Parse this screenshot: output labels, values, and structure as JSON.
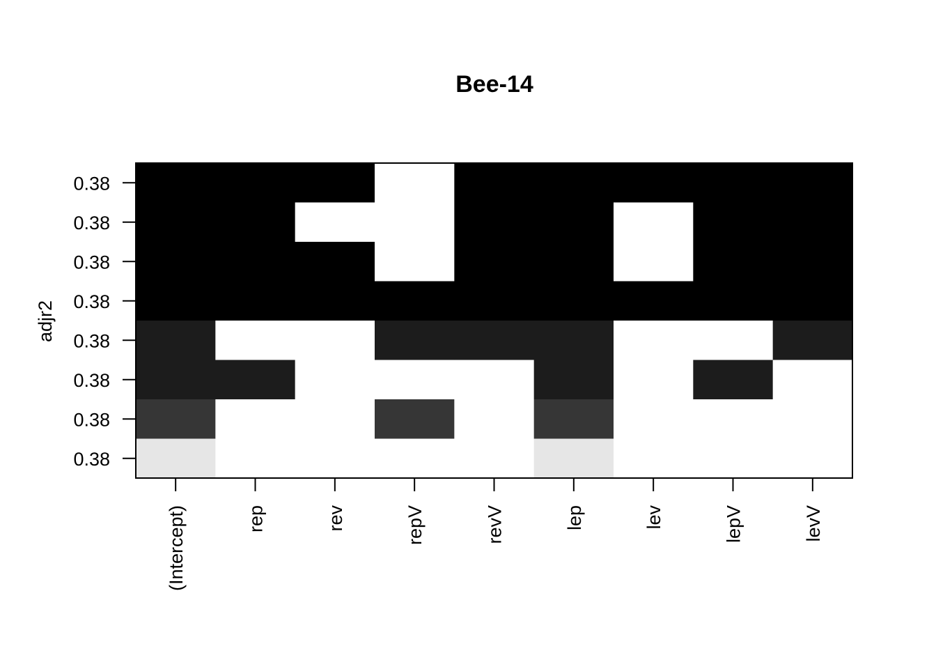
{
  "chart_data": {
    "type": "heatmap",
    "title": "Bee-14",
    "xlabel": "",
    "ylabel": "adjr2",
    "x_categories": [
      "(Intercept)",
      "rep",
      "rev",
      "repV",
      "revV",
      "lep",
      "lev",
      "lepV",
      "levV"
    ],
    "y_tick_labels": [
      "0.38",
      "0.38",
      "0.38",
      "0.38",
      "0.38",
      "0.38",
      "0.38",
      "0.38"
    ],
    "row_order": "top-to-bottom",
    "color_scale": "grayscale (black = highest adjr2, white = variable not included)",
    "cell_colors": [
      [
        "#000000",
        "#000000",
        "#000000",
        "#ffffff",
        "#000000",
        "#000000",
        "#000000",
        "#000000",
        "#000000"
      ],
      [
        "#000000",
        "#000000",
        "#ffffff",
        "#ffffff",
        "#000000",
        "#000000",
        "#ffffff",
        "#000000",
        "#000000"
      ],
      [
        "#000000",
        "#000000",
        "#000000",
        "#ffffff",
        "#000000",
        "#000000",
        "#ffffff",
        "#000000",
        "#000000"
      ],
      [
        "#000000",
        "#000000",
        "#000000",
        "#000000",
        "#000000",
        "#000000",
        "#000000",
        "#000000",
        "#000000"
      ],
      [
        "#1c1c1c",
        "#ffffff",
        "#ffffff",
        "#1c1c1c",
        "#1c1c1c",
        "#1c1c1c",
        "#ffffff",
        "#ffffff",
        "#1c1c1c"
      ],
      [
        "#1c1c1c",
        "#1c1c1c",
        "#ffffff",
        "#ffffff",
        "#ffffff",
        "#1c1c1c",
        "#ffffff",
        "#1c1c1c",
        "#ffffff"
      ],
      [
        "#363636",
        "#ffffff",
        "#ffffff",
        "#363636",
        "#ffffff",
        "#363636",
        "#ffffff",
        "#ffffff",
        "#ffffff"
      ],
      [
        "#e6e6e6",
        "#ffffff",
        "#ffffff",
        "#ffffff",
        "#ffffff",
        "#e6e6e6",
        "#ffffff",
        "#ffffff",
        "#ffffff"
      ]
    ],
    "grid": false,
    "legend": "none"
  }
}
